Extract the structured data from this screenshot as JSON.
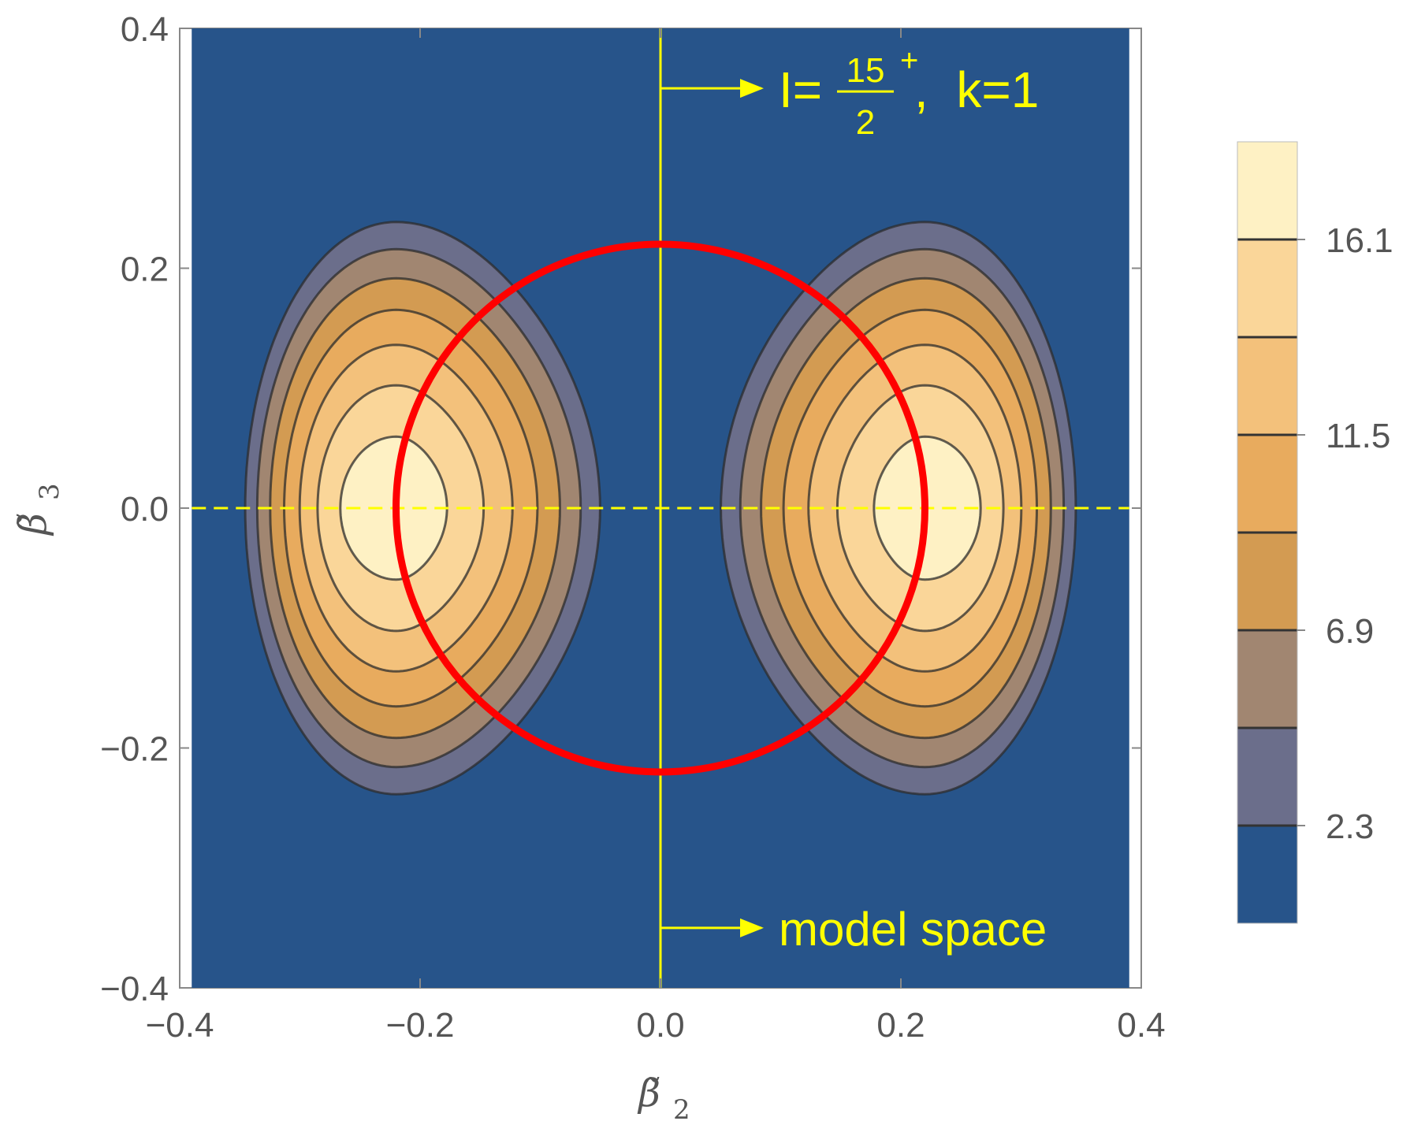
{
  "chart_data": {
    "type": "contour",
    "title": "",
    "xlabel": {
      "symbol": "β̃",
      "sub": "2"
    },
    "ylabel": {
      "symbol": "β̃",
      "sub": "3"
    },
    "xlim": [
      -0.4,
      0.4
    ],
    "ylim": [
      -0.4,
      0.4
    ],
    "plot_x_range": [
      -0.39,
      0.39
    ],
    "x_ticks": [
      {
        "v": -0.4,
        "label": "−0.4"
      },
      {
        "v": -0.2,
        "label": "−0.2"
      },
      {
        "v": 0.0,
        "label": "0.0"
      },
      {
        "v": 0.2,
        "label": "0.2"
      },
      {
        "v": 0.4,
        "label": "0.4"
      }
    ],
    "y_ticks": [
      {
        "v": -0.4,
        "label": "−0.4"
      },
      {
        "v": -0.2,
        "label": "−0.2"
      },
      {
        "v": 0.0,
        "label": "0.0"
      },
      {
        "v": 0.2,
        "label": "0.2"
      },
      {
        "v": 0.4,
        "label": "0.4"
      }
    ],
    "background_color": "#27548a",
    "contour_bands": [
      {
        "level": 0.0,
        "color": "#27548a"
      },
      {
        "level": 2.3,
        "color": "#6b6e8b"
      },
      {
        "level": 4.6,
        "color": "#a18671"
      },
      {
        "level": 6.9,
        "color": "#d39b52"
      },
      {
        "level": 9.2,
        "color": "#e8ab5e"
      },
      {
        "level": 11.5,
        "color": "#f3c17b"
      },
      {
        "level": 13.8,
        "color": "#fad699"
      },
      {
        "level": 16.1,
        "color": "#fef1c4"
      }
    ],
    "colorbar_labels": [
      "16.1",
      "11.5",
      "6.9",
      "2.3"
    ],
    "colorbar_range": [
      0,
      18.4
    ],
    "peaks": [
      {
        "x": -0.22,
        "y": 0.0,
        "max": 17.4
      },
      {
        "x": 0.22,
        "y": 0.0,
        "max": 17.4
      }
    ],
    "circle": {
      "cx": 0.0,
      "cy": 0.0,
      "radius": 0.22,
      "color": "#ff0000"
    },
    "vertical_line": {
      "x": 0.0,
      "color": "#ffff00",
      "style": "solid"
    },
    "horizontal_line": {
      "y": 0.0,
      "color": "#ffff00",
      "style": "dashed"
    },
    "annotations": {
      "top": {
        "arrow_y": 0.35,
        "prefix": "I=",
        "numerator": "15",
        "denominator": "2",
        "sup": "+",
        "suffix": ",  k=1"
      },
      "bottom": {
        "arrow_y": -0.35,
        "text": "model space"
      }
    }
  }
}
